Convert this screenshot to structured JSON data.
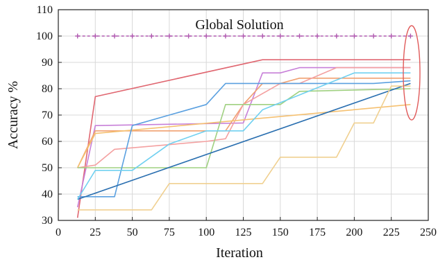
{
  "chart_data": {
    "type": "line",
    "title": "",
    "xlabel": "Iteration",
    "ylabel": "Accuracy %",
    "xlim": [
      0,
      250
    ],
    "ylim": [
      30,
      110
    ],
    "xticks": [
      0,
      25,
      50,
      75,
      100,
      125,
      150,
      175,
      200,
      225,
      250
    ],
    "yticks": [
      30,
      40,
      50,
      60,
      70,
      80,
      90,
      100,
      110
    ],
    "grid": true,
    "legend": "none",
    "annotations": [
      {
        "text": "Global Solution"
      }
    ],
    "highlight_color": "#e05a5a",
    "series": [
      {
        "color": "#b05ab0",
        "dashed": true,
        "markers": "plus",
        "x": [
          13,
          25,
          38,
          50,
          63,
          75,
          88,
          100,
          113,
          125,
          138,
          150,
          163,
          175,
          188,
          200,
          213,
          225,
          238
        ],
        "y": [
          100,
          100,
          100,
          100,
          100,
          100,
          100,
          100,
          100,
          100,
          100,
          100,
          100,
          100,
          100,
          100,
          100,
          100,
          100
        ]
      },
      {
        "color": "#e06670",
        "x": [
          13,
          25,
          138,
          238
        ],
        "y": [
          31,
          77,
          91,
          91
        ]
      },
      {
        "color": "#c77fd8",
        "x": [
          13,
          25,
          125,
          138,
          150,
          163,
          238
        ],
        "y": [
          35,
          66,
          67,
          86,
          86,
          88,
          88
        ]
      },
      {
        "color": "#f0a070",
        "x": [
          13,
          25,
          38,
          113,
          125,
          138,
          150,
          163,
          238
        ],
        "y": [
          50,
          64,
          64,
          64,
          74,
          82,
          82,
          84,
          84
        ]
      },
      {
        "color": "#f4a0a0",
        "x": [
          13,
          25,
          38,
          100,
          113,
          125,
          150,
          163,
          188,
          238
        ],
        "y": [
          50,
          51,
          57,
          60,
          61,
          74,
          82,
          82,
          88,
          88
        ]
      },
      {
        "color": "#f5c070",
        "x": [
          13,
          25,
          238
        ],
        "y": [
          50,
          63,
          74
        ]
      },
      {
        "color": "#9fd080",
        "x": [
          13,
          25,
          100,
          113,
          150,
          163,
          238
        ],
        "y": [
          50,
          50,
          50,
          74,
          74,
          79,
          80
        ]
      },
      {
        "color": "#5aa0e0",
        "x": [
          13,
          38,
          50,
          100,
          113,
          163,
          213,
          238
        ],
        "y": [
          39,
          39,
          66,
          74,
          82,
          82,
          82,
          83
        ]
      },
      {
        "color": "#2a6fb0",
        "x": [
          13,
          238
        ],
        "y": [
          38,
          82
        ]
      },
      {
        "color": "#70d0f0",
        "x": [
          13,
          25,
          50,
          75,
          100,
          125,
          138,
          200,
          238
        ],
        "y": [
          38,
          49,
          49,
          59,
          64,
          64,
          72,
          86,
          86
        ]
      },
      {
        "color": "#f0d090",
        "x": [
          13,
          63,
          75,
          138,
          150,
          188,
          200,
          213,
          225,
          238
        ],
        "y": [
          34,
          34,
          44,
          44,
          54,
          54,
          67,
          67,
          81,
          81
        ]
      }
    ]
  }
}
